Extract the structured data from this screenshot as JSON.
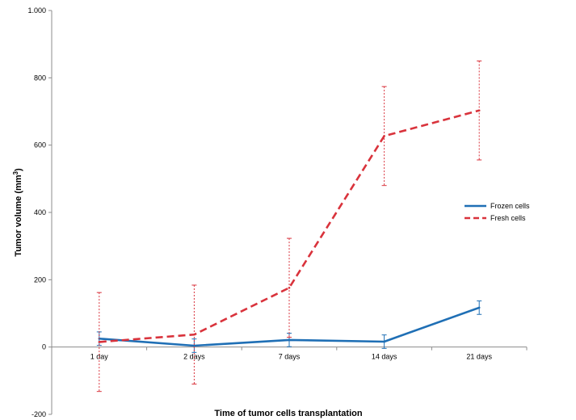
{
  "chart_data": {
    "type": "line",
    "categories": [
      "1 day",
      "2 days",
      "7 days",
      "14 days",
      "21 days"
    ],
    "series": [
      {
        "name": "Frozen cells",
        "values": [
          25,
          4,
          21,
          16,
          117
        ],
        "error": [
          20,
          20,
          20,
          20,
          20
        ],
        "color": "#1f6fb5",
        "dash": "solid"
      },
      {
        "name": "Fresh cells",
        "values": [
          15,
          37,
          176,
          627,
          703
        ],
        "error": [
          147,
          147,
          147,
          147,
          147
        ],
        "color": "#d9333c",
        "dash": "dashed"
      }
    ],
    "xlabel": "Time of tumor cells transplantation",
    "ylabel_main": "Tumor volume (mm",
    "ylabel_sup": "3",
    "ylabel_end": ")",
    "ylim": [
      -200,
      1000
    ],
    "yticks": [
      -200,
      0,
      200,
      400,
      600,
      800,
      1000
    ],
    "ytick_labels": [
      "-200",
      "0",
      "200",
      "400",
      "600",
      "800",
      "1.000"
    ],
    "grid": false,
    "legend_position": "right"
  }
}
